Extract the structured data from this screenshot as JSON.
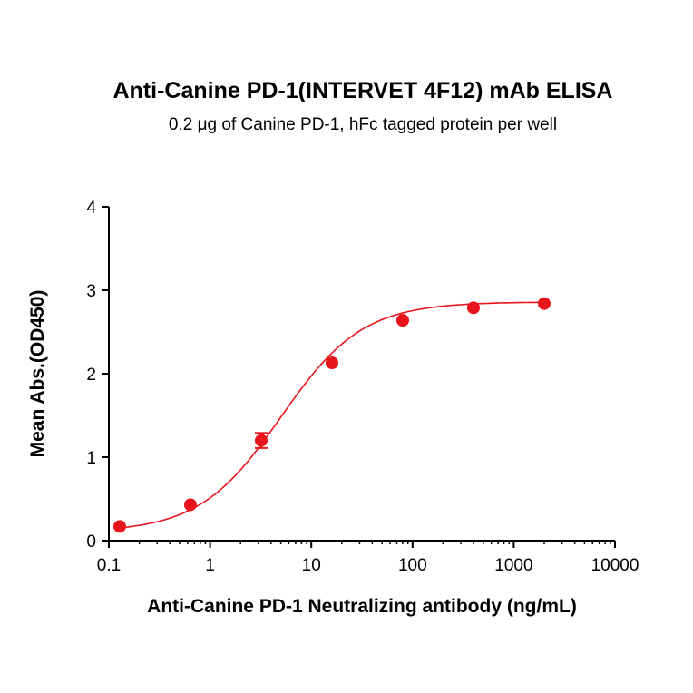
{
  "chart_data": {
    "type": "scatter",
    "title": "Anti-Canine PD-1(INTERVET 4F12) mAb ELISA",
    "subtitle": "0.2 μg of Canine PD-1, hFc tagged protein per well",
    "xlabel": "Anti-Canine PD-1 Neutralizing antibody (ng/mL)",
    "ylabel": "Mean Abs.(OD450)",
    "xscale": "log",
    "xlim": [
      0.1,
      10000
    ],
    "ylim": [
      0,
      4
    ],
    "xticks": [
      "0.1",
      "1",
      "10",
      "100",
      "1000",
      "10000"
    ],
    "xtick_values": [
      0.1,
      1,
      10,
      100,
      1000,
      10000
    ],
    "yticks": [
      "0",
      "1",
      "2",
      "3",
      "4"
    ],
    "ytick_values": [
      0,
      1,
      2,
      3,
      4
    ],
    "grid": false,
    "series": [
      {
        "name": "Anti-Canine PD-1",
        "color": "#e8141b",
        "x": [
          0.128,
          0.64,
          3.2,
          16,
          80,
          400,
          2000
        ],
        "y": [
          0.17,
          0.43,
          1.2,
          2.13,
          2.64,
          2.79,
          2.84
        ],
        "err": [
          0,
          0,
          0.09,
          0,
          0,
          0,
          0
        ],
        "fit": {
          "model": "4PL",
          "bottom": 0.1,
          "top": 2.86,
          "ec50": 5.0,
          "hill": 1.08
        }
      }
    ]
  }
}
